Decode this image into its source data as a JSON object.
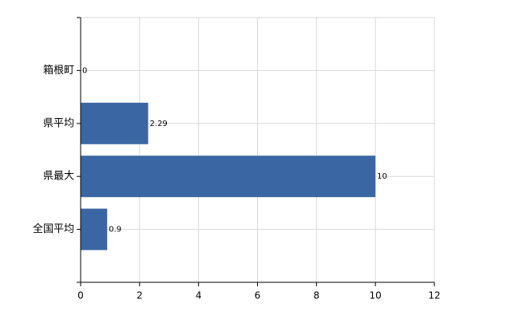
{
  "chart_data": {
    "type": "hbar",
    "categories": [
      "箱根町",
      "県平均",
      "県最大",
      "全国平均"
    ],
    "values": [
      0,
      2.29,
      10,
      0.9
    ],
    "color": "#3a67a3",
    "xlim": [
      0,
      12
    ],
    "xticks": [
      0,
      2,
      4,
      6,
      8,
      10,
      12
    ],
    "grid": true
  }
}
